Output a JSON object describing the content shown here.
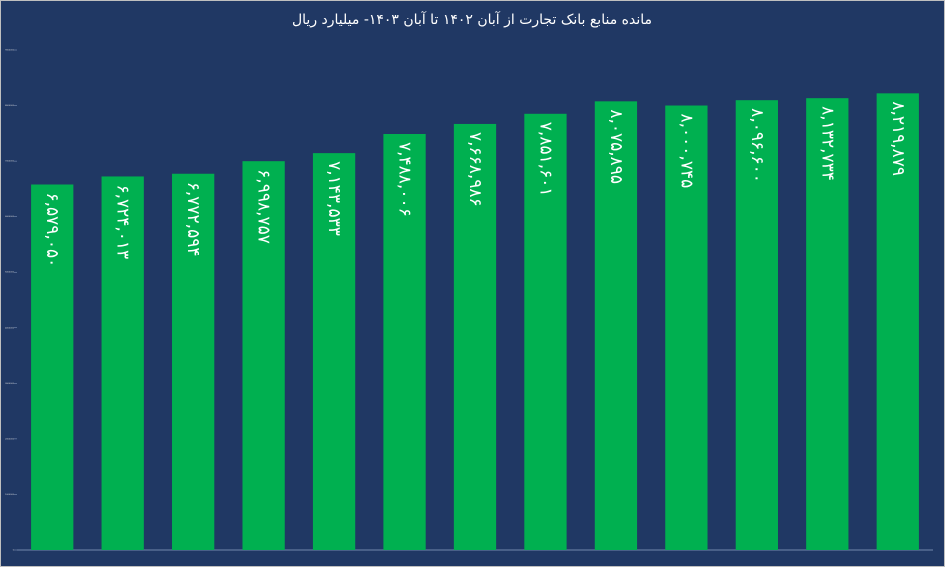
{
  "chart_data": {
    "type": "bar",
    "title": "مانده منابع بانک تجارت از آبان ۱۴۰۲ تا آبان ۱۴۰۳- میلیارد ریال",
    "values": [
      6579050,
      6724013,
      6772594,
      6998757,
      7143533,
      7488006,
      7668986,
      7851601,
      8075895,
      8000745,
      8096600,
      8132734,
      8219879
    ],
    "value_labels": [
      "۶,۵۷۹,۰۵۰",
      "۶,۷۲۴,۰۱۳",
      "۶,۷۷۲,۵۹۴",
      "۶,۹۹۸,۷۵۷",
      "۷,۱۴۳,۵۳۳",
      "۷,۴۸۸,۰۰۶",
      "۷,۶۶۸,۹۸۶",
      "۷,۸۵۱,۶۰۱",
      "۸,۰۷۵,۸۹۵",
      "۸,۰۰۰,۷۴۵",
      "۸,۰۹۶,۶۰۰",
      "۸,۱۳۲,۷۳۴",
      "۸,۲۱۹,۸۷۹"
    ],
    "color": "#00b050",
    "ylim": [
      0,
      9000000
    ],
    "yticks": [
      0,
      1000000,
      2000000,
      3000000,
      4000000,
      5000000,
      6000000,
      7000000,
      8000000,
      9000000
    ],
    "grid": false
  }
}
